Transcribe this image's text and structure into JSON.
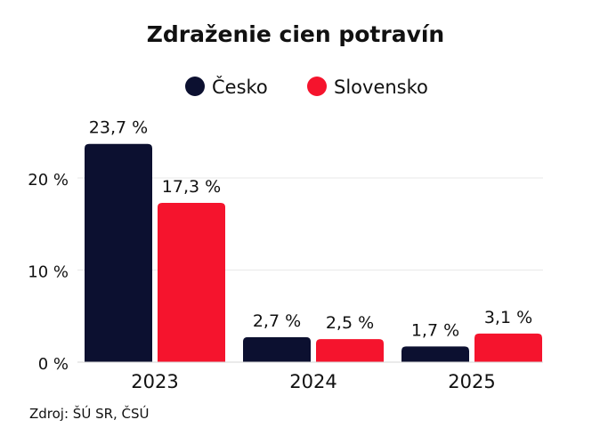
{
  "chart_data": {
    "type": "bar",
    "title": "Zdraženie cien potravín",
    "categories": [
      "2023",
      "2024",
      "2025"
    ],
    "series": [
      {
        "name": "Česko",
        "color": "#0c1030",
        "values": [
          23.7,
          2.7,
          1.7
        ],
        "labels": [
          "23,7 %",
          "2,7 %",
          "1,7 %"
        ]
      },
      {
        "name": "Slovensko",
        "color": "#f5142d",
        "values": [
          17.3,
          2.5,
          3.1
        ],
        "labels": [
          "17,3 %",
          "2,5 %",
          "3,1 %"
        ]
      }
    ],
    "y_ticks": [
      {
        "value": 0,
        "label": "0 %"
      },
      {
        "value": 10,
        "label": "10 %"
      },
      {
        "value": 20,
        "label": "20 %"
      }
    ],
    "ylim": [
      0,
      24
    ],
    "grid": true,
    "legend_position": "top-center",
    "xlabel": "",
    "ylabel": ""
  },
  "source": "Zdroj: ŠÚ SR, ČSÚ"
}
